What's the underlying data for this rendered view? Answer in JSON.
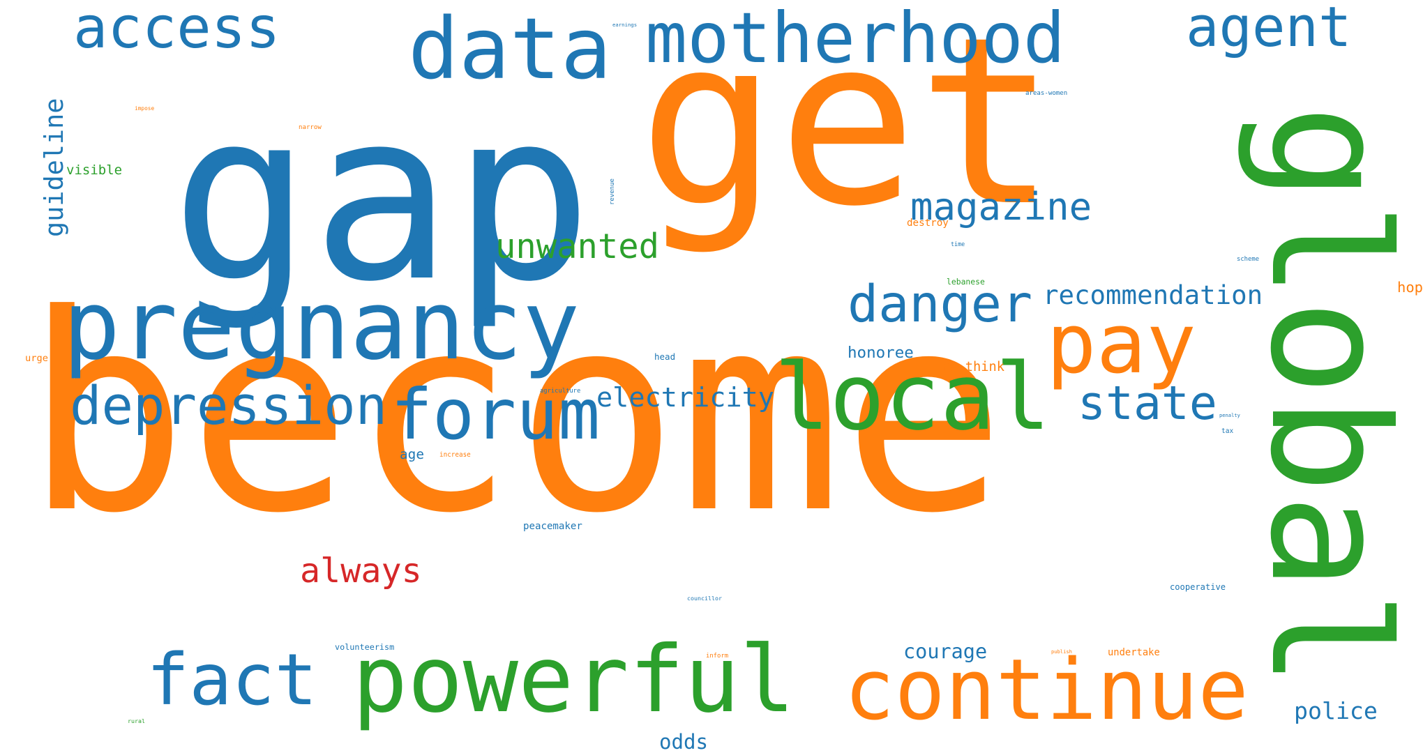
{
  "colors": {
    "blue": "#1f77b4",
    "orange": "#ff7f0e",
    "green": "#2ca02c",
    "red": "#d62728"
  },
  "words": [
    {
      "text": "become",
      "color": "orange"
    },
    {
      "text": "get",
      "color": "orange"
    },
    {
      "text": "gap",
      "color": "blue"
    },
    {
      "text": "global",
      "color": "green"
    },
    {
      "text": "pregnancy",
      "color": "blue"
    },
    {
      "text": "data",
      "color": "blue"
    },
    {
      "text": "access",
      "color": "blue"
    },
    {
      "text": "motherhood",
      "color": "blue"
    },
    {
      "text": "agent",
      "color": "blue"
    },
    {
      "text": "local",
      "color": "green"
    },
    {
      "text": "pay",
      "color": "orange"
    },
    {
      "text": "continue",
      "color": "orange"
    },
    {
      "text": "powerful",
      "color": "green"
    },
    {
      "text": "fact",
      "color": "blue"
    },
    {
      "text": "forum",
      "color": "blue"
    },
    {
      "text": "depression",
      "color": "blue"
    },
    {
      "text": "danger",
      "color": "blue"
    },
    {
      "text": "magazine",
      "color": "blue"
    },
    {
      "text": "unwanted",
      "color": "green"
    },
    {
      "text": "state",
      "color": "blue"
    },
    {
      "text": "always",
      "color": "red"
    },
    {
      "text": "recommendation",
      "color": "blue"
    },
    {
      "text": "electricity",
      "color": "blue"
    },
    {
      "text": "guideline",
      "color": "blue"
    },
    {
      "text": "police",
      "color": "blue"
    },
    {
      "text": "courage",
      "color": "blue"
    },
    {
      "text": "odds",
      "color": "blue"
    },
    {
      "text": "honoree",
      "color": "blue"
    },
    {
      "text": "re-think",
      "color": "orange"
    },
    {
      "text": "visible",
      "color": "green"
    },
    {
      "text": "peacemaker",
      "color": "blue"
    },
    {
      "text": "undertake",
      "color": "orange"
    },
    {
      "text": "age",
      "color": "blue"
    },
    {
      "text": "destroy",
      "color": "orange"
    },
    {
      "text": "hop",
      "color": "orange"
    },
    {
      "text": "cooperative",
      "color": "blue"
    },
    {
      "text": "urge",
      "color": "orange"
    },
    {
      "text": "head",
      "color": "blue"
    },
    {
      "text": "lebanese",
      "color": "green"
    },
    {
      "text": "volunteerism",
      "color": "blue"
    },
    {
      "text": "councillor",
      "color": "blue"
    },
    {
      "text": "inform",
      "color": "orange"
    },
    {
      "text": "rural",
      "color": "green"
    },
    {
      "text": "areas-women",
      "color": "blue"
    },
    {
      "text": "narrow",
      "color": "orange"
    },
    {
      "text": "scheme",
      "color": "blue"
    },
    {
      "text": "agriculture",
      "color": "blue"
    },
    {
      "text": "increase",
      "color": "orange"
    },
    {
      "text": "tax",
      "color": "blue"
    },
    {
      "text": "revenue",
      "color": "blue"
    },
    {
      "text": "impose",
      "color": "orange"
    },
    {
      "text": "earnings",
      "color": "blue"
    },
    {
      "text": "time",
      "color": "blue"
    },
    {
      "text": "penalty",
      "color": "blue"
    },
    {
      "text": "publish",
      "color": "orange"
    }
  ]
}
